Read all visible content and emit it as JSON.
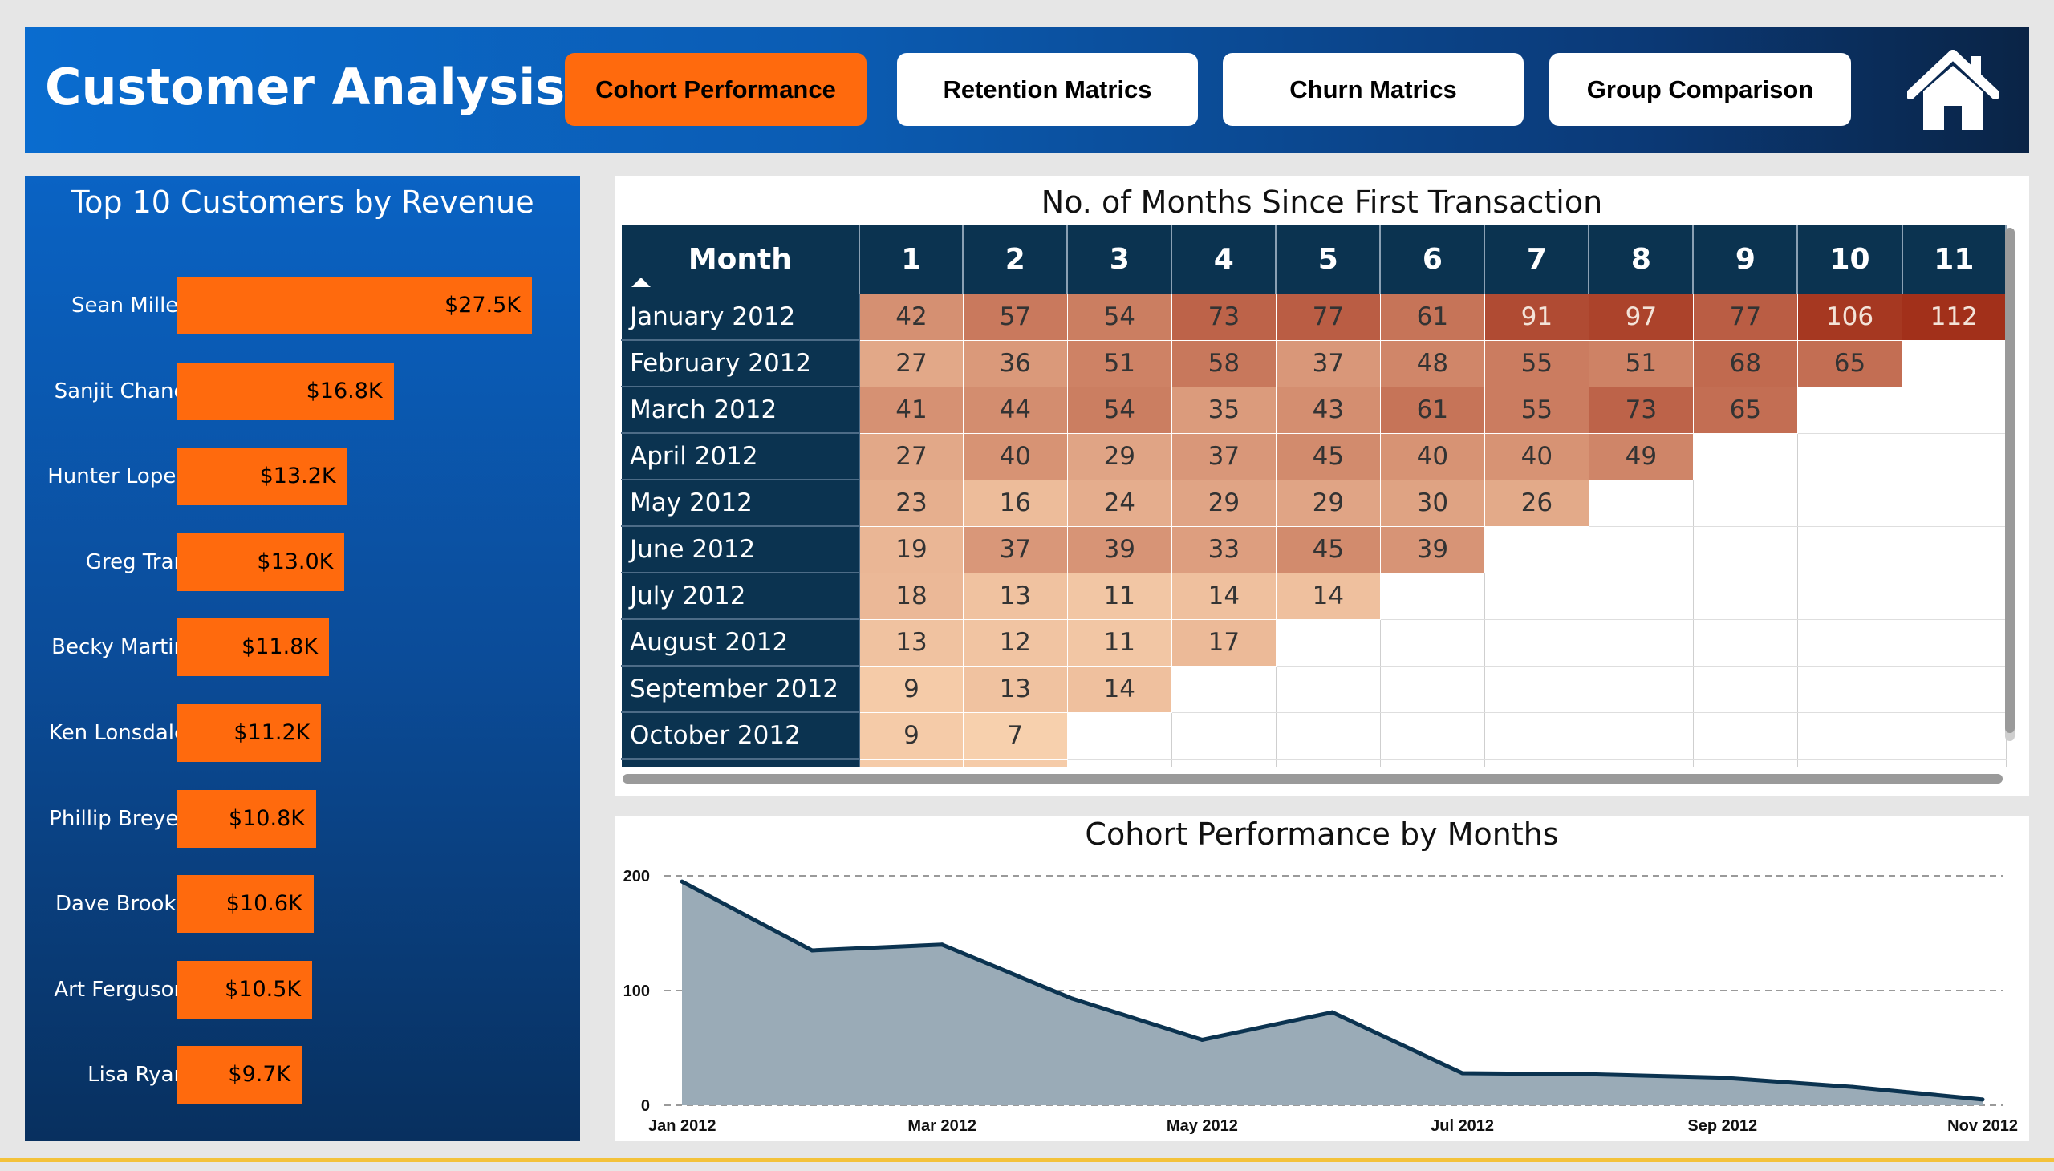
{
  "header": {
    "title": "Customer Analysis",
    "nav": [
      {
        "label": "Cohort Performance",
        "active": true
      },
      {
        "label": "Retention Matrics",
        "active": false
      },
      {
        "label": "Churn Matrics",
        "active": false
      },
      {
        "label": "Group Comparison",
        "active": false
      }
    ],
    "home_icon": "home-icon"
  },
  "top_customers": {
    "title": "Top 10 Customers by Revenue",
    "items": [
      {
        "name": "Sean Miller",
        "label": "$27.5K",
        "value": 27.5
      },
      {
        "name": "Sanjit Chand",
        "label": "$16.8K",
        "value": 16.8
      },
      {
        "name": "Hunter Lopez",
        "label": "$13.2K",
        "value": 13.2
      },
      {
        "name": "Greg Tran",
        "label": "$13.0K",
        "value": 13.0
      },
      {
        "name": "Becky Martin",
        "label": "$11.8K",
        "value": 11.8
      },
      {
        "name": "Ken Lonsdale",
        "label": "$11.2K",
        "value": 11.2
      },
      {
        "name": "Phillip Breyer",
        "label": "$10.8K",
        "value": 10.8
      },
      {
        "name": "Dave Brooks",
        "label": "$10.6K",
        "value": 10.6
      },
      {
        "name": "Art Ferguson",
        "label": "$10.5K",
        "value": 10.5
      },
      {
        "name": "Lisa Ryan",
        "label": "$9.7K",
        "value": 9.7
      }
    ]
  },
  "cohort_matrix": {
    "title": "No. of Months Since First Transaction",
    "row_header": "Month",
    "columns": [
      "1",
      "2",
      "3",
      "4",
      "5",
      "6",
      "7",
      "8",
      "9",
      "10",
      "11"
    ],
    "rows": [
      {
        "month": "January 2012",
        "values": [
          42,
          57,
          54,
          73,
          77,
          61,
          91,
          97,
          77,
          106,
          112
        ]
      },
      {
        "month": "February 2012",
        "values": [
          27,
          36,
          51,
          58,
          37,
          48,
          55,
          51,
          68,
          65
        ]
      },
      {
        "month": "March 2012",
        "values": [
          41,
          44,
          54,
          35,
          43,
          61,
          55,
          73,
          65
        ]
      },
      {
        "month": "April 2012",
        "values": [
          27,
          40,
          29,
          37,
          45,
          40,
          40,
          49
        ]
      },
      {
        "month": "May 2012",
        "values": [
          23,
          16,
          24,
          29,
          29,
          30,
          26
        ]
      },
      {
        "month": "June 2012",
        "values": [
          19,
          37,
          39,
          33,
          45,
          39
        ]
      },
      {
        "month": "July 2012",
        "values": [
          18,
          13,
          11,
          14,
          14
        ]
      },
      {
        "month": "August 2012",
        "values": [
          13,
          12,
          11,
          17
        ]
      },
      {
        "month": "September 2012",
        "values": [
          9,
          13,
          14
        ]
      },
      {
        "month": "October 2012",
        "values": [
          9,
          7
        ]
      }
    ]
  },
  "chart_data": {
    "type": "area",
    "title": "Cohort Performance by Months",
    "x": [
      "Jan 2012",
      "Feb 2012",
      "Mar 2012",
      "Apr 2012",
      "May 2012",
      "Jun 2012",
      "Jul 2012",
      "Aug 2012",
      "Sep 2012",
      "Oct 2012",
      "Nov 2012"
    ],
    "x_tick_labels": [
      "Jan 2012",
      "Mar 2012",
      "May 2012",
      "Jul 2012",
      "Sep 2012",
      "Nov 2012"
    ],
    "values": [
      195,
      135,
      140,
      93,
      57,
      81,
      28,
      27,
      24,
      16,
      5
    ],
    "y_ticks": [
      0,
      100,
      200
    ],
    "ylim": [
      0,
      200
    ],
    "grid": true,
    "colors": {
      "fill": "#9aabb7",
      "line": "#0b3350"
    }
  },
  "colors": {
    "accent": "#ff6a0d",
    "navy": "#0b3350",
    "heat_low": "#fbd7b3",
    "heat_high": "#a2301a"
  }
}
